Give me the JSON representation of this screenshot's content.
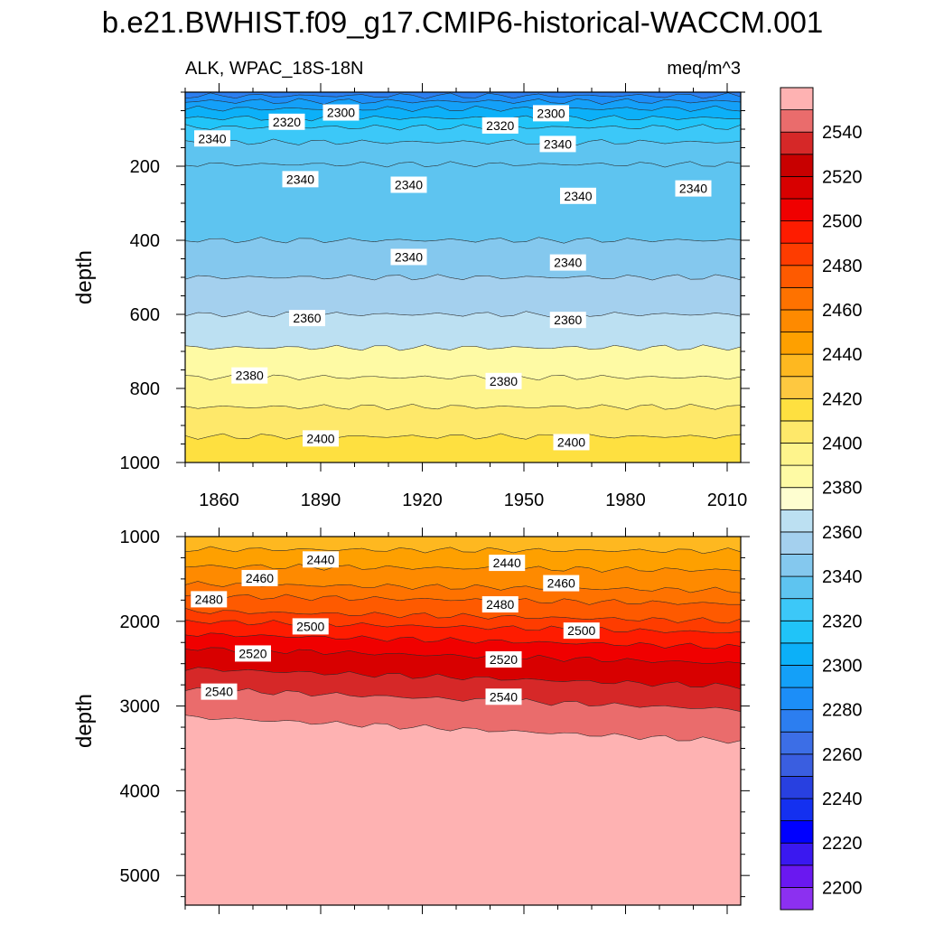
{
  "title": "b.e21.BWHIST.f09_g17.CMIP6-historical-WACCM.001",
  "chart_data": {
    "type": "heatmap",
    "variable": "ALK, WPAC_18S-18N",
    "units": "meq/m^3",
    "x": {
      "ticks": [
        1860,
        1890,
        1920,
        1950,
        1980,
        2010
      ],
      "range": [
        1850,
        2014
      ]
    },
    "panels": [
      {
        "name": "upper",
        "ylabel": "depth",
        "yrange": [
          0,
          1000
        ],
        "yticks": [
          200,
          400,
          600,
          800,
          1000
        ],
        "y_inverted": true,
        "bands": [
          {
            "top": 0,
            "bottom": 10,
            "value": 2270
          },
          {
            "top": 10,
            "bottom": 25,
            "value": 2280
          },
          {
            "top": 25,
            "bottom": 45,
            "value": 2290
          },
          {
            "top": 45,
            "bottom": 70,
            "value": 2300
          },
          {
            "top": 70,
            "bottom": 95,
            "value": 2310
          },
          {
            "top": 95,
            "bottom": 135,
            "value": 2320
          },
          {
            "top": 135,
            "bottom": 195,
            "value": 2330
          },
          {
            "top": 195,
            "bottom": 400,
            "value": 2335
          },
          {
            "top": 400,
            "bottom": 500,
            "value": 2340
          },
          {
            "top": 500,
            "bottom": 600,
            "value": 2350
          },
          {
            "top": 600,
            "bottom": 690,
            "value": 2360
          },
          {
            "top": 690,
            "bottom": 770,
            "value": 2380
          },
          {
            "top": 770,
            "bottom": 850,
            "value": 2390
          },
          {
            "top": 850,
            "bottom": 930,
            "value": 2400
          },
          {
            "top": 930,
            "bottom": 1000,
            "value": 2410
          }
        ],
        "contour_labels": [
          {
            "text": "2300",
            "x": 1896,
            "y": 55
          },
          {
            "text": "2300",
            "x": 1958,
            "y": 57
          },
          {
            "text": "2320",
            "x": 1880,
            "y": 80
          },
          {
            "text": "2320",
            "x": 1943,
            "y": 90
          },
          {
            "text": "2340",
            "x": 1858,
            "y": 125
          },
          {
            "text": "2340",
            "x": 1960,
            "y": 140
          },
          {
            "text": "2340",
            "x": 1884,
            "y": 235
          },
          {
            "text": "2340",
            "x": 1916,
            "y": 250
          },
          {
            "text": "2340",
            "x": 1966,
            "y": 280
          },
          {
            "text": "2340",
            "x": 2000,
            "y": 260
          },
          {
            "text": "2340",
            "x": 1916,
            "y": 445
          },
          {
            "text": "2340",
            "x": 1963,
            "y": 460
          },
          {
            "text": "2360",
            "x": 1886,
            "y": 610
          },
          {
            "text": "2360",
            "x": 1963,
            "y": 615
          },
          {
            "text": "2380",
            "x": 1869,
            "y": 765
          },
          {
            "text": "2380",
            "x": 1944,
            "y": 780
          },
          {
            "text": "2400",
            "x": 1890,
            "y": 935
          },
          {
            "text": "2400",
            "x": 1964,
            "y": 945
          }
        ]
      },
      {
        "name": "lower",
        "ylabel": "depth",
        "yrange": [
          1000,
          5350
        ],
        "yticks": [
          1000,
          2000,
          3000,
          4000,
          5000
        ],
        "y_inverted": true,
        "bands": [
          {
            "top": 1000,
            "bottom": 1150,
            "value": 2430
          },
          {
            "top": 1150,
            "bottom": 1350,
            "value": 2440
          },
          {
            "top": 1350,
            "bottom": 1560,
            "value": 2450
          },
          {
            "top": 1560,
            "bottom": 1700,
            "value": 2460
          },
          {
            "top": 1700,
            "bottom": 1880,
            "value": 2470
          },
          {
            "top": 1880,
            "bottom": 2000,
            "value": 2480
          },
          {
            "top": 2000,
            "bottom": 2150,
            "value": 2490
          },
          {
            "top": 2150,
            "bottom": 2320,
            "value": 2500
          },
          {
            "top": 2320,
            "bottom": 2560,
            "value": 2510
          },
          {
            "top": 2560,
            "bottom": 2800,
            "value": 2530
          },
          {
            "top": 2800,
            "bottom": 3130,
            "value": 2540
          },
          {
            "top": 3130,
            "bottom": 5350,
            "value": 2550
          }
        ],
        "contour_labels": [
          {
            "text": "2440",
            "x": 1890,
            "y": 1270
          },
          {
            "text": "2440",
            "x": 1945,
            "y": 1310
          },
          {
            "text": "2460",
            "x": 1872,
            "y": 1490
          },
          {
            "text": "2460",
            "x": 1961,
            "y": 1550
          },
          {
            "text": "2480",
            "x": 1857,
            "y": 1740
          },
          {
            "text": "2480",
            "x": 1943,
            "y": 1800
          },
          {
            "text": "2500",
            "x": 1887,
            "y": 2060
          },
          {
            "text": "2500",
            "x": 1967,
            "y": 2110
          },
          {
            "text": "2520",
            "x": 1870,
            "y": 2380
          },
          {
            "text": "2520",
            "x": 1944,
            "y": 2450
          },
          {
            "text": "2540",
            "x": 1860,
            "y": 2830
          },
          {
            "text": "2540",
            "x": 1944,
            "y": 2890
          }
        ]
      }
    ],
    "colorbar": {
      "levels": [
        2200,
        2210,
        2220,
        2230,
        2240,
        2250,
        2260,
        2270,
        2280,
        2290,
        2300,
        2310,
        2320,
        2330,
        2340,
        2350,
        2360,
        2370,
        2380,
        2390,
        2400,
        2410,
        2420,
        2430,
        2440,
        2450,
        2460,
        2470,
        2480,
        2490,
        2500,
        2510,
        2520,
        2530,
        2540,
        2550
      ],
      "colors": [
        "#8c30f0",
        "#6a18f0",
        "#3a18f0",
        "#0000ff",
        "#1430f0",
        "#2840e0",
        "#3a5ee0",
        "#3c6ee6",
        "#2c7ef0",
        "#1c8ef8",
        "#14a0f8",
        "#0cb0f8",
        "#20c4f8",
        "#3cc8f8",
        "#5ec4f0",
        "#84c8ee",
        "#a4d0ee",
        "#bce0f2",
        "#fefed0",
        "#fefaa4",
        "#fef48c",
        "#fee86a",
        "#fee040",
        "#fec840",
        "#feb820",
        "#fea000",
        "#fe8a00",
        "#fe7200",
        "#fe5a00",
        "#fe3c00",
        "#fe1c00",
        "#f00000",
        "#d80000",
        "#c80000",
        "#d62828",
        "#ea6c6c",
        "#feb2b2"
      ],
      "labels": [
        2200,
        2220,
        2240,
        2260,
        2280,
        2300,
        2320,
        2340,
        2360,
        2380,
        2400,
        2420,
        2440,
        2460,
        2480,
        2500,
        2520,
        2540
      ]
    }
  }
}
